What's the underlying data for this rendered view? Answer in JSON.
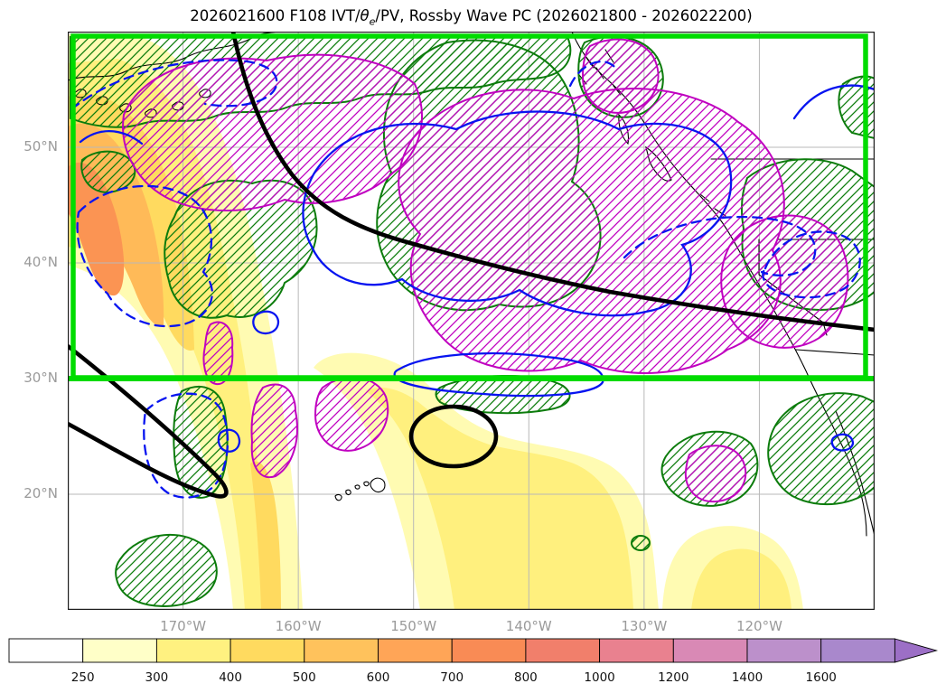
{
  "title": {
    "prefix": "2026021600 F108 IVT/",
    "theta": "θ",
    "theta_sub": "e",
    "suffix": "/PV, Rossby Wave PC (2026021800 - 2026022200)"
  },
  "axes": {
    "lon_range": [
      -180,
      -110
    ],
    "lat_range": [
      10,
      60
    ],
    "lon_ticks": [
      {
        "label": "170°W",
        "value": -170
      },
      {
        "label": "160°W",
        "value": -160
      },
      {
        "label": "150°W",
        "value": -150
      },
      {
        "label": "140°W",
        "value": -140
      },
      {
        "label": "130°W",
        "value": -130
      },
      {
        "label": "120°W",
        "value": -120
      }
    ],
    "lat_ticks": [
      {
        "label": "50°N",
        "value": 50
      },
      {
        "label": "40°N",
        "value": 40
      },
      {
        "label": "30°N",
        "value": 30
      },
      {
        "label": "20°N",
        "value": 20
      }
    ],
    "tick_color": "#9a9a9a",
    "grid_color": "#b8b8b8"
  },
  "colorbar": {
    "labels": [
      "250",
      "300",
      "400",
      "500",
      "600",
      "700",
      "800",
      "1000",
      "1200",
      "1400",
      "1600"
    ],
    "segment_colors": [
      "#ffffff",
      "#ffffc8",
      "#fff180",
      "#ffda5f",
      "#ffc25c",
      "#ffa557",
      "#f98b55",
      "#f17f6b",
      "#e9818f",
      "#d989b5",
      "#bc90cb",
      "#a988cc"
    ],
    "arrow_color": "#9c6fc6",
    "label_color": "#111111",
    "border_color": "#000000"
  },
  "chart_data": {
    "type": "heatmap",
    "subtype": "filled-contour-forecast-map",
    "title": "2026021600 F108 IVT/θe/PV, Rossby Wave PC (2026021800 - 2026022200)",
    "x_axis": {
      "ticks": [
        "170°W",
        "160°W",
        "150°W",
        "140°W",
        "130°W",
        "120°W"
      ],
      "range_deg": [
        -180,
        -110
      ],
      "grid": true
    },
    "y_axis": {
      "ticks": [
        "50°N",
        "40°N",
        "30°N",
        "20°N"
      ],
      "range_deg": [
        10,
        60
      ],
      "grid": true
    },
    "colorbar_levels": [
      250,
      300,
      400,
      500,
      600,
      700,
      800,
      1000,
      1200,
      1400,
      1600
    ],
    "colorbar_extend": "max",
    "legend_position": "bottom-horizontal",
    "layers": [
      {
        "name": "ivt-filled-shading",
        "style": "filled-contours",
        "palette": [
          "#ffffc8",
          "#fff180",
          "#ffda5f",
          "#ffc25c",
          "#ffa557",
          "#f98b55"
        ]
      },
      {
        "name": "green-hatched-contours",
        "style": "hatched-outline",
        "color": "#0c7c0c"
      },
      {
        "name": "magenta-hatched-contours",
        "style": "hatched-outline",
        "color": "#c000c0"
      },
      {
        "name": "blue-solid-contours",
        "style": "solid-outline",
        "color": "#0714f0"
      },
      {
        "name": "blue-dashed-contours",
        "style": "dashed-outline",
        "color": "#0714f0"
      },
      {
        "name": "black-thick-contours",
        "style": "thick-solid",
        "color": "#000000"
      },
      {
        "name": "rossby-wave-pc-box",
        "style": "thick-rectangle-with-bottom-line",
        "color": "#00dc00",
        "box_bottom_lat": 30
      }
    ]
  }
}
